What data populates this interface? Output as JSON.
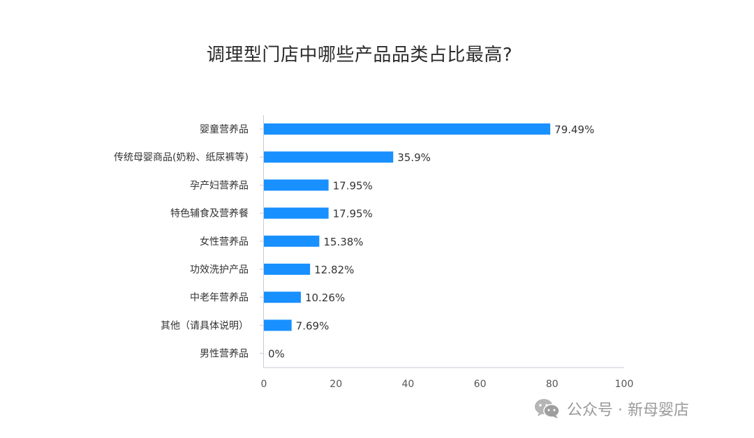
{
  "chart_data": {
    "type": "bar",
    "orientation": "horizontal",
    "title": "调理型门店中哪些产品品类占比最高?",
    "categories": [
      "婴童营养品",
      "传统母婴商品(奶粉、纸尿裤等)",
      "孕产妇营养品",
      "特色辅食及营养餐",
      "女性营养品",
      "功效洗护产品",
      "中老年营养品",
      "其他（请具体说明）",
      "男性营养品"
    ],
    "values": [
      79.49,
      35.9,
      17.95,
      17.95,
      15.38,
      12.82,
      10.26,
      7.69,
      0
    ],
    "value_labels": [
      "79.49%",
      "35.9%",
      "17.95%",
      "17.95%",
      "15.38%",
      "12.82%",
      "10.26%",
      "7.69%",
      "0%"
    ],
    "xlim": [
      0,
      100
    ],
    "xticks": [
      "0",
      "20",
      "40",
      "60",
      "80",
      "100"
    ],
    "xlabel": "",
    "ylabel": "",
    "grid": false,
    "colors": {
      "bar": "#1890ff",
      "axis": "#c8cbd6",
      "label_text": "#333333",
      "tick_text": "#555555"
    }
  },
  "watermark": {
    "icon": "wechat-icon",
    "text": "公众号 · 新母婴店"
  }
}
